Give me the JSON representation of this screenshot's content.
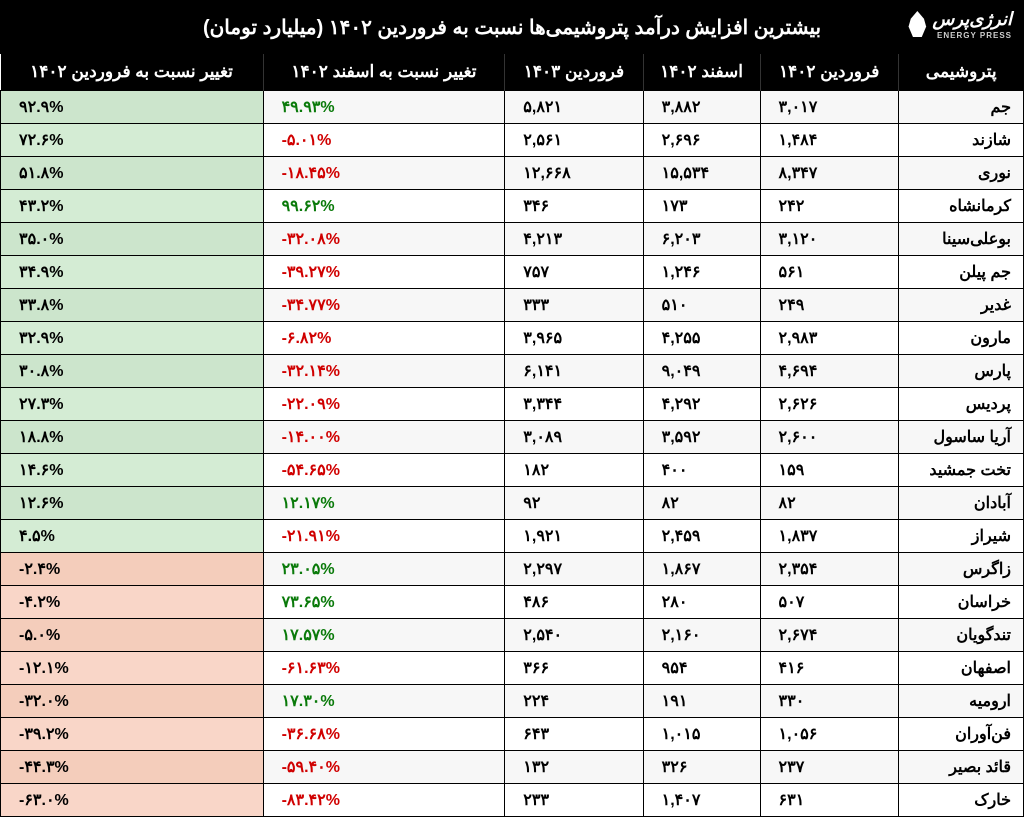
{
  "title": "بیشترین افزایش درآمد پتروشیمی‌ها نسبت به فروردین ۱۴۰۲ (میلیارد تومان)",
  "brand": {
    "name": "انرژی‌پرس",
    "sub": "ENERGY PRESS"
  },
  "columns": [
    "پتروشیمی",
    "فروردین ۱۴۰۲",
    "اسفند ۱۴۰۲",
    "فروردین ۱۴۰۳",
    "تغییر نسبت به اسفند ۱۴۰۲",
    "تغییر نسبت به فروردین ۱۴۰۲"
  ],
  "styling": {
    "header_bg": "#000000",
    "header_fg": "#ffffff",
    "pos_color": "#0a7a0a",
    "neg_color": "#d00000",
    "yoy_pos_bg": "#d4ecd4",
    "yoy_neg_bg": "#f9d6c8",
    "row_alt_bg": "#f7f7f7",
    "border_color": "#000000",
    "font_size_body": 16,
    "font_size_header": 17,
    "font_size_title": 20,
    "table_type": "table"
  },
  "rows": [
    {
      "name": "جم",
      "f1402": "۳,۰۱۷",
      "e1402": "۳,۸۸۲",
      "f1403": "۵,۸۲۱",
      "mom": "۴۹.۹۳%",
      "mom_sign": 1,
      "yoy": "۹۲.۹%",
      "yoy_sign": 1
    },
    {
      "name": "شازند",
      "f1402": "۱,۴۸۴",
      "e1402": "۲,۶۹۶",
      "f1403": "۲,۵۶۱",
      "mom": "-۵.۰۱%",
      "mom_sign": -1,
      "yoy": "۷۲.۶%",
      "yoy_sign": 1
    },
    {
      "name": "نوری",
      "f1402": "۸,۳۴۷",
      "e1402": "۱۵,۵۳۴",
      "f1403": "۱۲,۶۶۸",
      "mom": "-۱۸.۴۵%",
      "mom_sign": -1,
      "yoy": "۵۱.۸%",
      "yoy_sign": 1
    },
    {
      "name": "کرمانشاه",
      "f1402": "۲۴۲",
      "e1402": "۱۷۳",
      "f1403": "۳۴۶",
      "mom": "۹۹.۶۲%",
      "mom_sign": 1,
      "yoy": "۴۳.۲%",
      "yoy_sign": 1
    },
    {
      "name": "بوعلی‌سینا",
      "f1402": "۳,۱۲۰",
      "e1402": "۶,۲۰۳",
      "f1403": "۴,۲۱۳",
      "mom": "-۳۲.۰۸%",
      "mom_sign": -1,
      "yoy": "۳۵.۰%",
      "yoy_sign": 1
    },
    {
      "name": "جم پیلن",
      "f1402": "۵۶۱",
      "e1402": "۱,۲۴۶",
      "f1403": "۷۵۷",
      "mom": "-۳۹.۲۷%",
      "mom_sign": -1,
      "yoy": "۳۴.۹%",
      "yoy_sign": 1
    },
    {
      "name": "غدیر",
      "f1402": "۲۴۹",
      "e1402": "۵۱۰",
      "f1403": "۳۳۳",
      "mom": "-۳۴.۷۷%",
      "mom_sign": -1,
      "yoy": "۳۳.۸%",
      "yoy_sign": 1
    },
    {
      "name": "مارون",
      "f1402": "۲,۹۸۳",
      "e1402": "۴,۲۵۵",
      "f1403": "۳,۹۶۵",
      "mom": "-۶.۸۲%",
      "mom_sign": -1,
      "yoy": "۳۲.۹%",
      "yoy_sign": 1
    },
    {
      "name": "پارس",
      "f1402": "۴,۶۹۴",
      "e1402": "۹,۰۴۹",
      "f1403": "۶,۱۴۱",
      "mom": "-۳۲.۱۴%",
      "mom_sign": -1,
      "yoy": "۳۰.۸%",
      "yoy_sign": 1
    },
    {
      "name": "پردیس",
      "f1402": "۲,۶۲۶",
      "e1402": "۴,۲۹۲",
      "f1403": "۳,۳۴۴",
      "mom": "-۲۲.۰۹%",
      "mom_sign": -1,
      "yoy": "۲۷.۳%",
      "yoy_sign": 1
    },
    {
      "name": "آریا ساسول",
      "f1402": "۲,۶۰۰",
      "e1402": "۳,۵۹۲",
      "f1403": "۳,۰۸۹",
      "mom": "-۱۴.۰۰%",
      "mom_sign": -1,
      "yoy": "۱۸.۸%",
      "yoy_sign": 1
    },
    {
      "name": "تخت جمشید",
      "f1402": "۱۵۹",
      "e1402": "۴۰۰",
      "f1403": "۱۸۲",
      "mom": "-۵۴.۶۵%",
      "mom_sign": -1,
      "yoy": "۱۴.۶%",
      "yoy_sign": 1
    },
    {
      "name": "آبادان",
      "f1402": "۸۲",
      "e1402": "۸۲",
      "f1403": "۹۲",
      "mom": "۱۲.۱۷%",
      "mom_sign": 1,
      "yoy": "۱۲.۶%",
      "yoy_sign": 1
    },
    {
      "name": "شیراز",
      "f1402": "۱,۸۳۷",
      "e1402": "۲,۴۵۹",
      "f1403": "۱,۹۲۱",
      "mom": "-۲۱.۹۱%",
      "mom_sign": -1,
      "yoy": "۴.۵%",
      "yoy_sign": 1
    },
    {
      "name": "زاگرس",
      "f1402": "۲,۳۵۴",
      "e1402": "۱,۸۶۷",
      "f1403": "۲,۲۹۷",
      "mom": "۲۳.۰۵%",
      "mom_sign": 1,
      "yoy": "-۲.۴%",
      "yoy_sign": -1
    },
    {
      "name": "خراسان",
      "f1402": "۵۰۷",
      "e1402": "۲۸۰",
      "f1403": "۴۸۶",
      "mom": "۷۳.۶۵%",
      "mom_sign": 1,
      "yoy": "-۴.۲%",
      "yoy_sign": -1
    },
    {
      "name": "تندگویان",
      "f1402": "۲,۶۷۴",
      "e1402": "۲,۱۶۰",
      "f1403": "۲,۵۴۰",
      "mom": "۱۷.۵۷%",
      "mom_sign": 1,
      "yoy": "-۵.۰%",
      "yoy_sign": -1
    },
    {
      "name": "اصفهان",
      "f1402": "۴۱۶",
      "e1402": "۹۵۴",
      "f1403": "۳۶۶",
      "mom": "-۶۱.۶۳%",
      "mom_sign": -1,
      "yoy": "-۱۲.۱%",
      "yoy_sign": -1
    },
    {
      "name": "ارومیه",
      "f1402": "۳۳۰",
      "e1402": "۱۹۱",
      "f1403": "۲۲۴",
      "mom": "۱۷.۳۰%",
      "mom_sign": 1,
      "yoy": "-۳۲.۰%",
      "yoy_sign": -1
    },
    {
      "name": "فن‌آوران",
      "f1402": "۱,۰۵۶",
      "e1402": "۱,۰۱۵",
      "f1403": "۶۴۳",
      "mom": "-۳۶.۶۸%",
      "mom_sign": -1,
      "yoy": "-۳۹.۲%",
      "yoy_sign": -1
    },
    {
      "name": "قائد بصیر",
      "f1402": "۲۳۷",
      "e1402": "۳۲۶",
      "f1403": "۱۳۲",
      "mom": "-۵۹.۴۰%",
      "mom_sign": -1,
      "yoy": "-۴۴.۳%",
      "yoy_sign": -1
    },
    {
      "name": "خارک",
      "f1402": "۶۳۱",
      "e1402": "۱,۴۰۷",
      "f1403": "۲۳۳",
      "mom": "-۸۳.۴۲%",
      "mom_sign": -1,
      "yoy": "-۶۳.۰%",
      "yoy_sign": -1
    }
  ]
}
